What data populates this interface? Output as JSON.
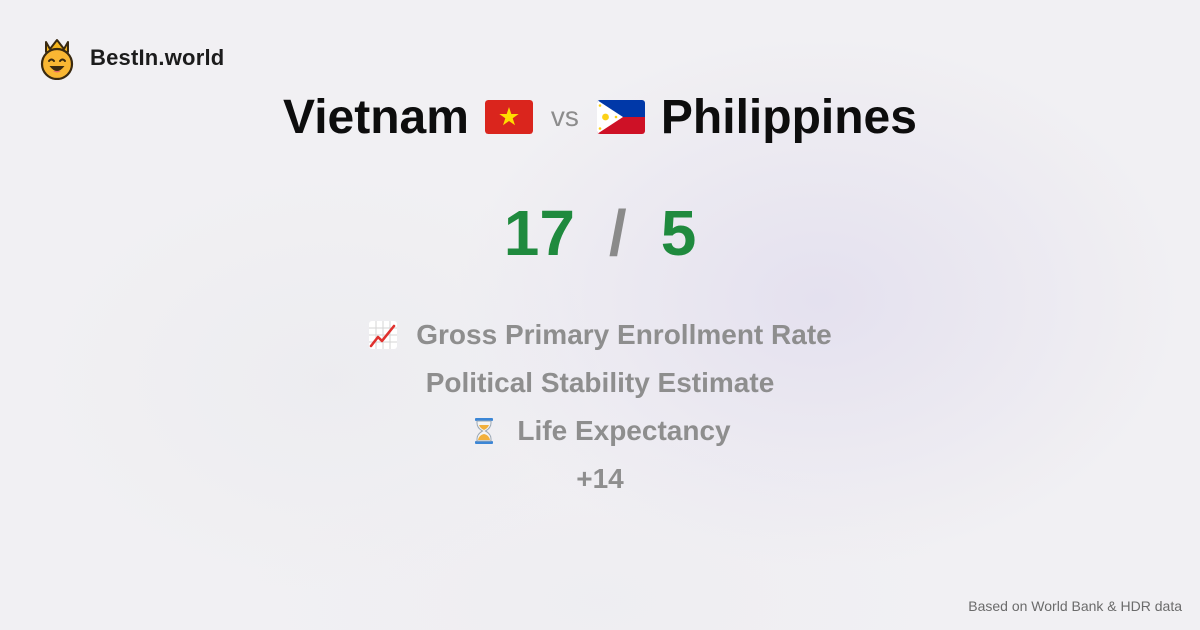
{
  "brand": {
    "name": "BestIn.world",
    "logo_icon": "smiling-crown-face-icon"
  },
  "comparison": {
    "country_left": "Vietnam",
    "flag_left": "vietnam-flag-icon",
    "vs_label": "vs",
    "country_right": "Philippines",
    "flag_right": "philippines-flag-icon"
  },
  "score": {
    "left": "17",
    "separator": "/",
    "right": "5"
  },
  "metrics": {
    "items": [
      {
        "label": "Gross Primary Enrollment Rate",
        "icon": "chart-increasing-icon"
      },
      {
        "label": "Political Stability Estimate",
        "icon": ""
      },
      {
        "label": "Life Expectancy",
        "icon": "hourglass-icon"
      },
      {
        "label": "+14",
        "icon": ""
      }
    ]
  },
  "footer": {
    "source_note": "Based on World Bank & HDR data"
  },
  "colors": {
    "score_green": "#1f8a3e",
    "muted_gray": "#8e8e8e",
    "title_black": "#0d0d0d"
  }
}
